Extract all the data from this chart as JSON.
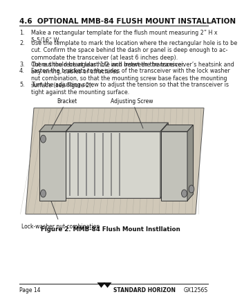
{
  "bg_color": "#ffffff",
  "title": "4.6  OPTIONAL MMB-84 FLUSH MOUNT INSTALLATION",
  "title_fontsize": 7.5,
  "body_fontsize": 5.8,
  "items": [
    "Make a rectangular template for the flush mount measuring 2” H x\n5-5/16” W.",
    "Use the template to mark the location where the rectangular hole is to be\ncut. Confirm the space behind the dash or panel is deep enough to ac-\ncommodate the transceiver (at least 6 inches deep).\nThere should be at least 1/2 inch between the transceiver’s heatsink and\nany wiring, cables or structures.",
    "Cut out the rectangular hole and insert the transceiver.",
    "Fasten the brackets to the sides of the transceiver with the lock washer\nnut combination, so that the mounting screw base faces the mounting\nsurface (see Figure 2).",
    "Turn the adjusting screw to adjust the tension so that the transceiver is\ntight against the mounting surface."
  ],
  "fig_caption": "Figure 2. MMB-84 Flush Mount Instllation",
  "fig_caption_fontsize": 6.2,
  "footer_left": "Page 14",
  "footer_center": "STANDARD HORIZON",
  "footer_right": "GX1256S",
  "footer_fontsize": 5.5,
  "label_bracket": "Bracket",
  "label_adjusting": "Adjusting Screw",
  "label_lockwasher": "Lock-washer nut combination",
  "label_fontsize": 5.5,
  "ml": 0.06,
  "mr": 0.97
}
